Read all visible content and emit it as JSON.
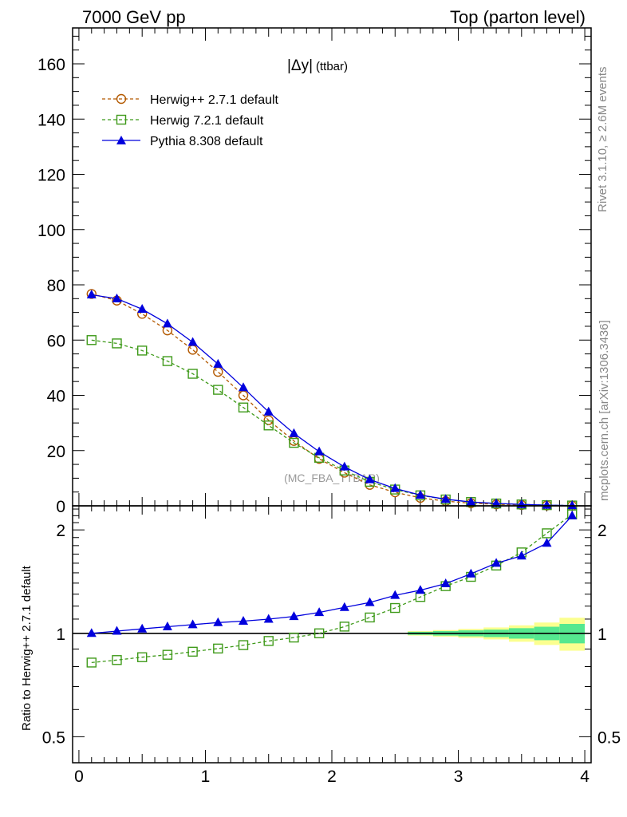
{
  "header": {
    "left": "7000 GeV pp",
    "right": "Top (parton level)"
  },
  "plot_title": {
    "main": "|Δy|",
    "sub": "(ttbar)"
  },
  "side_texts": {
    "rivet": "Rivet 3.1.10, ≥ 2.6M events",
    "mcplots": "mcplots.cern.ch [arXiv:1306.3436]"
  },
  "watermark": "(MC_FBA_TTBAR)",
  "ratio_ylabel": "Ratio to Herwig++ 2.7.1 default",
  "colors": {
    "herwigpp": "#b35900",
    "herwig7": "#3f9a1a",
    "pythia": "#0000dd",
    "band_inner": "#55e88f",
    "band_outer": "#fbff8f"
  },
  "chart_data": [
    {
      "type": "line",
      "panel": "main",
      "x": [
        0.1,
        0.3,
        0.5,
        0.7,
        0.9,
        1.1,
        1.3,
        1.5,
        1.7,
        1.9,
        2.1,
        2.3,
        2.5,
        2.7,
        2.9,
        3.1,
        3.3,
        3.5,
        3.7,
        3.9
      ],
      "series": [
        {
          "name": "Herwig++ 2.7.1 default",
          "marker": "circle",
          "style": "dashed",
          "color": "#b35900",
          "values": [
            76.7,
            74.3,
            69.5,
            63.5,
            56.5,
            48.5,
            40.0,
            31.0,
            23.5,
            17.0,
            12.0,
            7.6,
            4.9,
            2.9,
            1.7,
            0.95,
            0.55,
            0.3,
            0.14,
            0.05
          ]
        },
        {
          "name": "Herwig 7.2.1 default",
          "marker": "square",
          "style": "dashed",
          "color": "#3f9a1a",
          "values": [
            60.0,
            58.8,
            56.2,
            52.4,
            47.8,
            42.0,
            35.6,
            29.1,
            22.8,
            17.4,
            12.8,
            8.7,
            5.9,
            3.8,
            2.3,
            1.38,
            0.85,
            0.5,
            0.26,
            0.11
          ]
        },
        {
          "name": "Pythia 8.308 default",
          "marker": "triangle",
          "style": "solid",
          "color": "#0000dd",
          "values": [
            76.4,
            75.0,
            71.2,
            65.9,
            59.2,
            51.3,
            42.8,
            34.0,
            26.2,
            19.6,
            14.1,
            9.5,
            6.3,
            3.9,
            2.4,
            1.4,
            0.88,
            0.52,
            0.25,
            0.11
          ]
        }
      ],
      "xlim": [
        -0.05,
        4.05
      ],
      "ylim": [
        0,
        173
      ],
      "yticks": [
        0,
        20,
        40,
        60,
        80,
        100,
        120,
        140,
        160
      ],
      "legend": "top-left"
    },
    {
      "type": "line",
      "panel": "ratio",
      "x": [
        0.1,
        0.3,
        0.5,
        0.7,
        0.9,
        1.1,
        1.3,
        1.5,
        1.7,
        1.9,
        2.1,
        2.3,
        2.5,
        2.7,
        2.9,
        3.1,
        3.3,
        3.5,
        3.7,
        3.9
      ],
      "ylabel": "Ratio to Herwig++ 2.7.1 default",
      "yscale": "log",
      "ylim": [
        0.42,
        2.35
      ],
      "yticks": [
        0.5,
        1,
        2
      ],
      "xticks": [
        0,
        1,
        2,
        3,
        4
      ],
      "xlim": [
        -0.05,
        4.05
      ],
      "reference": 1,
      "band": {
        "x_edges": [
          2.6,
          2.8,
          3.0,
          3.2,
          3.4,
          3.6,
          3.8,
          4.0
        ],
        "inner": [
          0.01,
          0.015,
          0.02,
          0.025,
          0.035,
          0.045,
          0.065
        ],
        "outer": [
          0.015,
          0.022,
          0.03,
          0.04,
          0.055,
          0.075,
          0.11
        ]
      },
      "series": [
        {
          "name": "Herwig 7.2.1 default",
          "marker": "square",
          "style": "dashed",
          "color": "#3f9a1a",
          "values": [
            0.822,
            0.836,
            0.852,
            0.866,
            0.884,
            0.903,
            0.924,
            0.95,
            0.972,
            1.0,
            1.046,
            1.112,
            1.185,
            1.276,
            1.372,
            1.46,
            1.575,
            1.72,
            1.955,
            2.22
          ]
        },
        {
          "name": "Pythia 8.308 default",
          "marker": "triangle",
          "style": "solid",
          "color": "#0000dd",
          "values": [
            1.0,
            1.015,
            1.03,
            1.045,
            1.06,
            1.075,
            1.085,
            1.1,
            1.12,
            1.15,
            1.19,
            1.23,
            1.29,
            1.335,
            1.395,
            1.49,
            1.6,
            1.68,
            1.83,
            2.2
          ]
        }
      ]
    }
  ]
}
